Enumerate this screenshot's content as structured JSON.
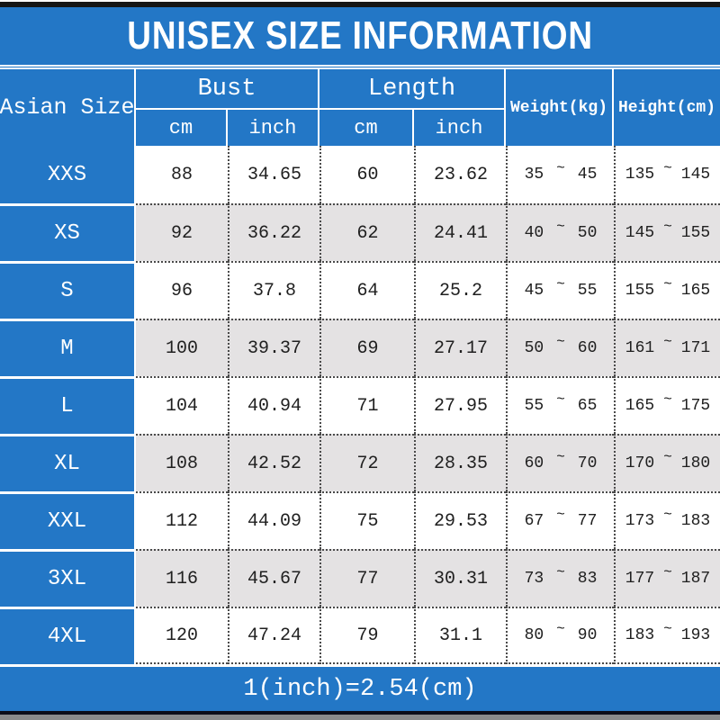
{
  "page": {
    "title": "UNISEX SIZE INFORMATION",
    "footer_note": "1(inch)=2.54(cm)"
  },
  "colors": {
    "blue": "#2377C6",
    "altRow": "#E4E2E3",
    "dot": "#4a4a4a",
    "text": "#202020"
  },
  "table": {
    "headers": {
      "size": "Asian Size",
      "bust": "Bust",
      "length": "Length",
      "weight": "Weight(kg)",
      "height": "Height(cm)",
      "cm": "cm",
      "inch": "inch",
      "tilde": "~"
    },
    "rows": [
      {
        "size": "XXS",
        "bust_cm": "88",
        "bust_inch": "34.65",
        "length_cm": "60",
        "length_inch": "23.62",
        "weight_min": "35",
        "weight_max": "45",
        "height_min": "135",
        "height_max": "145"
      },
      {
        "size": "XS",
        "bust_cm": "92",
        "bust_inch": "36.22",
        "length_cm": "62",
        "length_inch": "24.41",
        "weight_min": "40",
        "weight_max": "50",
        "height_min": "145",
        "height_max": "155"
      },
      {
        "size": "S",
        "bust_cm": "96",
        "bust_inch": "37.8",
        "length_cm": "64",
        "length_inch": "25.2",
        "weight_min": "45",
        "weight_max": "55",
        "height_min": "155",
        "height_max": "165"
      },
      {
        "size": "M",
        "bust_cm": "100",
        "bust_inch": "39.37",
        "length_cm": "69",
        "length_inch": "27.17",
        "weight_min": "50",
        "weight_max": "60",
        "height_min": "161",
        "height_max": "171"
      },
      {
        "size": "L",
        "bust_cm": "104",
        "bust_inch": "40.94",
        "length_cm": "71",
        "length_inch": "27.95",
        "weight_min": "55",
        "weight_max": "65",
        "height_min": "165",
        "height_max": "175"
      },
      {
        "size": "XL",
        "bust_cm": "108",
        "bust_inch": "42.52",
        "length_cm": "72",
        "length_inch": "28.35",
        "weight_min": "60",
        "weight_max": "70",
        "height_min": "170",
        "height_max": "180"
      },
      {
        "size": "XXL",
        "bust_cm": "112",
        "bust_inch": "44.09",
        "length_cm": "75",
        "length_inch": "29.53",
        "weight_min": "67",
        "weight_max": "77",
        "height_min": "173",
        "height_max": "183"
      },
      {
        "size": "3XL",
        "bust_cm": "116",
        "bust_inch": "45.67",
        "length_cm": "77",
        "length_inch": "30.31",
        "weight_min": "73",
        "weight_max": "83",
        "height_min": "177",
        "height_max": "187"
      },
      {
        "size": "4XL",
        "bust_cm": "120",
        "bust_inch": "47.24",
        "length_cm": "79",
        "length_inch": "31.1",
        "weight_min": "80",
        "weight_max": "90",
        "height_min": "183",
        "height_max": "193"
      }
    ]
  }
}
